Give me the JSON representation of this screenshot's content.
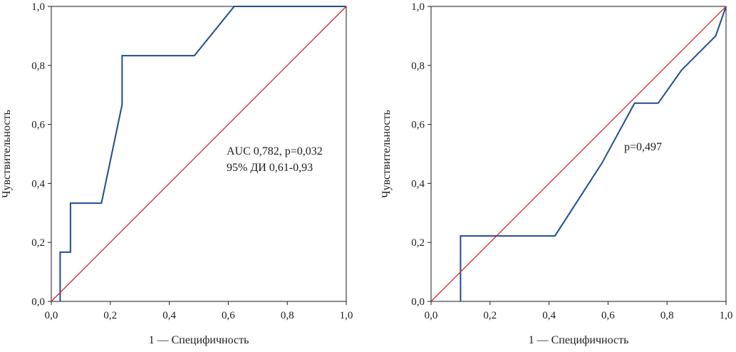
{
  "colors": {
    "roc_curve": "#1f4e8c",
    "diagonal": "#d0252b",
    "axis": "#1a1a1a",
    "background": "#ffffff"
  },
  "chart_data": [
    {
      "type": "line",
      "title": "",
      "xlabel": "1 — Специфичность",
      "ylabel": "Чувствительность",
      "xlim": [
        0,
        1
      ],
      "ylim": [
        0,
        1
      ],
      "grid": false,
      "x_ticks": [
        "0,0",
        "0,2",
        "0,4",
        "0,6",
        "0,8",
        "1,0"
      ],
      "y_ticks": [
        "0,0",
        "0,2",
        "0,4",
        "0,6",
        "0,8",
        "1,0"
      ],
      "annotations": [
        "AUC 0,782, p=0,032",
        "95% ДИ 0,61-0,93"
      ],
      "series": [
        {
          "x": [
            0.03,
            0.03,
            0.065,
            0.065,
            0.17,
            0.24,
            0.24,
            0.485,
            0.62,
            1.0
          ],
          "y": [
            0.0,
            0.167,
            0.167,
            0.333,
            0.333,
            0.667,
            0.833,
            0.833,
            1.0,
            1.0
          ]
        },
        {
          "x": [
            0,
            1
          ],
          "y": [
            0,
            1
          ]
        }
      ]
    },
    {
      "type": "line",
      "title": "",
      "xlabel": "1 — Специфичность",
      "ylabel": "Чувствительность",
      "xlim": [
        0,
        1
      ],
      "ylim": [
        0,
        1
      ],
      "grid": false,
      "x_ticks": [
        "0,0",
        "0,2",
        "0,4",
        "0,6",
        "0,8",
        "1,0"
      ],
      "y_ticks": [
        "0,0",
        "0,2",
        "0,4",
        "0,6",
        "0,8",
        "1,0"
      ],
      "annotations": [
        "p=0,497"
      ],
      "series": [
        {
          "x": [
            0.1,
            0.1,
            0.42,
            0.58,
            0.69,
            0.77,
            0.85,
            0.965,
            1.0
          ],
          "y": [
            0.0,
            0.222,
            0.222,
            0.47,
            0.672,
            0.672,
            0.785,
            0.9,
            1.0
          ]
        },
        {
          "x": [
            0,
            1
          ],
          "y": [
            0,
            1
          ]
        }
      ]
    }
  ]
}
